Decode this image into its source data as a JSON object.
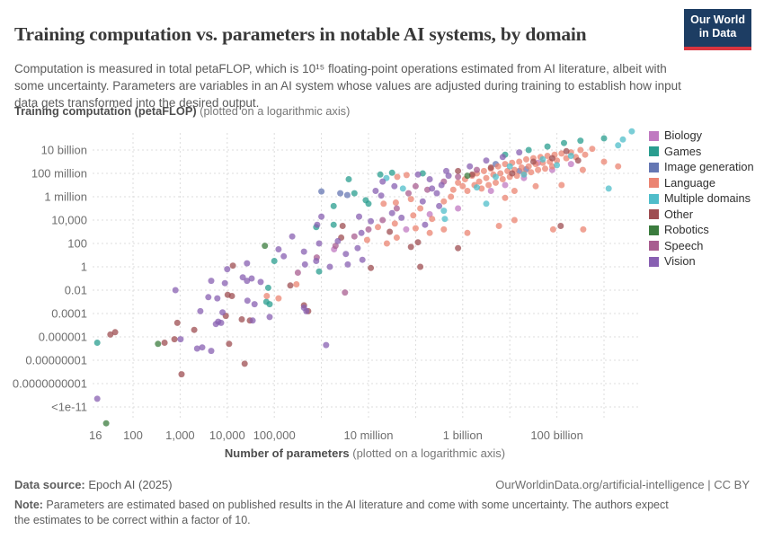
{
  "header": {
    "title": "Training computation vs. parameters in notable AI systems, by domain",
    "subtitle": "Computation is measured in total petaFLOP, which is 10¹⁵ floating-point operations estimated from AI literature, albeit with some uncertainty. Parameters are variables in an AI system whose values are adjusted during training to establish how input data gets transformed into the desired output.",
    "logo_line1": "Our World",
    "logo_line2": "in Data",
    "logo_bg": "#1d3d63",
    "logo_accent": "#d8353f"
  },
  "axis_header": {
    "bold": "Training computation (petaFLOP)",
    "normal": " (plotted on a logarithmic axis)"
  },
  "x_axis_title": {
    "bold": "Number of parameters",
    "normal": " (plotted on a logarithmic axis)"
  },
  "footer": {
    "source_label": "Data source:",
    "source_value": " Epoch AI (2025)",
    "attribution": "OurWorldinData.org/artificial-intelligence | CC BY",
    "note_label": "Note:",
    "note_value": " Parameters are estimated based on published results in the AI literature and come with some uncertainty. The authors expect the estimates to be correct within a factor of 10."
  },
  "chart_data": {
    "type": "scatter",
    "title": "Training computation vs. parameters in notable AI systems, by domain",
    "xlabel": "Number of parameters (logarithmic axis)",
    "ylabel": "Training computation, petaFLOP (logarithmic axis)",
    "grid": true,
    "legend_position": "right",
    "x_range_log10": [
      1.1,
      12.8
    ],
    "y_range_log10": [
      -13.5,
      12
    ],
    "x_gridlines_log10": [
      2,
      3,
      4,
      5,
      6,
      7,
      8,
      9,
      10,
      11,
      12
    ],
    "x_ticks": [
      {
        "label": "16",
        "log10": 1.204
      },
      {
        "label": "100",
        "log10": 2
      },
      {
        "label": "1,000",
        "log10": 3
      },
      {
        "label": "10,000",
        "log10": 4
      },
      {
        "label": "100,000",
        "log10": 5
      },
      {
        "label": "10 million",
        "log10": 7
      },
      {
        "label": "1 billion",
        "log10": 9
      },
      {
        "label": "100 billion",
        "log10": 11
      }
    ],
    "y_ticks": [
      {
        "label": "10 billion",
        "log10": 10
      },
      {
        "label": "100 million",
        "log10": 8
      },
      {
        "label": "1 million",
        "log10": 6
      },
      {
        "label": "10,000",
        "log10": 4
      },
      {
        "label": "100",
        "log10": 2
      },
      {
        "label": "1",
        "log10": 0
      },
      {
        "label": "0.01",
        "log10": -2
      },
      {
        "label": "0.0001",
        "log10": -4
      },
      {
        "label": "0.000001",
        "log10": -6
      },
      {
        "label": "0.00000001",
        "log10": -8
      },
      {
        "label": "0.0000000001",
        "log10": -10
      },
      {
        "label": "<1e-11",
        "log10": -12
      }
    ],
    "point_radius": 3.5,
    "point_opacity": 0.75,
    "series": [
      {
        "name": "Biology",
        "color": "#c07ac1",
        "points": [
          [
            6.27,
            1.5
          ],
          [
            7.8,
            3.2
          ],
          [
            8.3,
            4.5
          ],
          [
            8.9,
            5.0
          ],
          [
            9.6,
            6.5
          ],
          [
            9.9,
            7.0
          ],
          [
            10.3,
            7.6
          ],
          [
            10.6,
            8.9
          ],
          [
            10.9,
            8.3
          ],
          [
            11.3,
            8.8
          ]
        ]
      },
      {
        "name": "Games",
        "color": "#2a9d8f",
        "points": [
          [
            1.24,
            -6.5
          ],
          [
            4.83,
            -3.0
          ],
          [
            4.87,
            -1.8
          ],
          [
            4.9,
            -3.2
          ],
          [
            5.0,
            0.5
          ],
          [
            5.89,
            3.4
          ],
          [
            5.95,
            -0.4
          ],
          [
            6.26,
            3.6
          ],
          [
            6.26,
            5.2
          ],
          [
            6.58,
            7.5
          ],
          [
            6.7,
            6.3
          ],
          [
            6.94,
            5.7
          ],
          [
            7.0,
            5.4
          ],
          [
            7.25,
            7.9
          ],
          [
            7.5,
            8.05
          ],
          [
            8.15,
            8.0
          ],
          [
            9.9,
            9.6
          ],
          [
            10.4,
            10.0
          ],
          [
            10.8,
            10.3
          ],
          [
            11.15,
            10.6
          ],
          [
            11.5,
            10.8
          ],
          [
            12.0,
            11.0
          ]
        ]
      },
      {
        "name": "Image generation",
        "color": "#6577b3",
        "points": [
          [
            6.0,
            6.45
          ],
          [
            6.4,
            6.3
          ],
          [
            6.55,
            6.15
          ],
          [
            9.7,
            8.8
          ],
          [
            10.2,
            8.2
          ],
          [
            10.35,
            8.35
          ]
        ]
      },
      {
        "name": "Language",
        "color": "#eb8472",
        "points": [
          [
            4.84,
            -2.5
          ],
          [
            5.09,
            -2.7
          ],
          [
            5.47,
            -1.5
          ],
          [
            6.97,
            2.3
          ],
          [
            7.39,
            2.0
          ],
          [
            7.56,
            3.7
          ],
          [
            7.61,
            7.7
          ],
          [
            7.81,
            7.85
          ],
          [
            7.32,
            5.4
          ],
          [
            7.58,
            5.5
          ],
          [
            7.9,
            5.8
          ],
          [
            7.95,
            4.4
          ],
          [
            8.1,
            5.0
          ],
          [
            7.2,
            3.4
          ],
          [
            7.6,
            2.5
          ],
          [
            8.0,
            3.3
          ],
          [
            8.35,
            4.1
          ],
          [
            8.3,
            2.9
          ],
          [
            8.6,
            5.6
          ],
          [
            8.75,
            6.0
          ],
          [
            8.6,
            3.2
          ],
          [
            9.1,
            2.9
          ],
          [
            9.77,
            3.5
          ],
          [
            10.92,
            3.2
          ],
          [
            8.8,
            6.6
          ],
          [
            8.9,
            7.2
          ],
          [
            9.0,
            6.9
          ],
          [
            9.05,
            7.5
          ],
          [
            9.1,
            6.5
          ],
          [
            9.2,
            7.8
          ],
          [
            9.25,
            7.0
          ],
          [
            9.3,
            8.0
          ],
          [
            9.35,
            7.3
          ],
          [
            9.4,
            6.7
          ],
          [
            9.45,
            8.2
          ],
          [
            9.5,
            7.6
          ],
          [
            9.55,
            7.0
          ],
          [
            9.6,
            8.4
          ],
          [
            9.65,
            7.9
          ],
          [
            9.7,
            7.2
          ],
          [
            9.75,
            8.6
          ],
          [
            9.8,
            8.0
          ],
          [
            9.85,
            7.5
          ],
          [
            9.9,
            8.8
          ],
          [
            9.95,
            8.2
          ],
          [
            10.0,
            7.7
          ],
          [
            10.05,
            8.9
          ],
          [
            10.1,
            8.3
          ],
          [
            10.15,
            7.8
          ],
          [
            10.2,
            9.0
          ],
          [
            10.25,
            8.5
          ],
          [
            10.3,
            8.0
          ],
          [
            10.35,
            9.2
          ],
          [
            10.4,
            8.6
          ],
          [
            10.45,
            8.1
          ],
          [
            10.5,
            9.3
          ],
          [
            10.55,
            8.8
          ],
          [
            10.6,
            8.3
          ],
          [
            10.65,
            9.4
          ],
          [
            10.7,
            8.9
          ],
          [
            10.75,
            8.4
          ],
          [
            10.8,
            9.5
          ],
          [
            10.85,
            9.0
          ],
          [
            10.9,
            8.6
          ],
          [
            10.95,
            9.6
          ],
          [
            11.0,
            9.1
          ],
          [
            11.1,
            9.7
          ],
          [
            11.2,
            9.3
          ],
          [
            11.3,
            9.8
          ],
          [
            11.4,
            9.4
          ],
          [
            11.5,
            10.0
          ],
          [
            11.6,
            9.6
          ],
          [
            11.75,
            10.1
          ],
          [
            12.3,
            8.6
          ],
          [
            10.1,
            6.5
          ],
          [
            10.55,
            6.9
          ],
          [
            11.1,
            7.0
          ],
          [
            9.9,
            5.9
          ],
          [
            11.55,
            8.3
          ],
          [
            12.0,
            9.0
          ],
          [
            11.56,
            3.2
          ],
          [
            10.1,
            4.0
          ]
        ]
      },
      {
        "name": "Multiple domains",
        "color": "#4fbdca",
        "points": [
          [
            7.73,
            6.7
          ],
          [
            7.38,
            7.6
          ],
          [
            8.62,
            4.1
          ],
          [
            9.3,
            6.8
          ],
          [
            9.5,
            5.4
          ],
          [
            9.7,
            7.7
          ],
          [
            10.0,
            8.6
          ],
          [
            10.3,
            7.9
          ],
          [
            10.7,
            9.2
          ],
          [
            11.0,
            8.7
          ],
          [
            11.3,
            9.5
          ],
          [
            12.1,
            6.7
          ],
          [
            12.3,
            10.4
          ],
          [
            12.4,
            10.9
          ],
          [
            12.59,
            11.6
          ],
          [
            8.6,
            4.8
          ]
        ]
      },
      {
        "name": "Other",
        "color": "#9e4e52",
        "points": [
          [
            1.52,
            -5.8
          ],
          [
            1.62,
            -5.6
          ],
          [
            2.67,
            -6.5
          ],
          [
            2.88,
            -6.2
          ],
          [
            2.94,
            -4.8
          ],
          [
            3.3,
            -5.4
          ],
          [
            3.03,
            -9.2
          ],
          [
            3.97,
            -4.2
          ],
          [
            4.31,
            -4.5
          ],
          [
            4.48,
            -4.6
          ],
          [
            4.04,
            -6.6
          ],
          [
            4.37,
            -8.3
          ],
          [
            4.1,
            -2.5
          ],
          [
            4.12,
            0.1
          ],
          [
            4.01,
            -2.4
          ],
          [
            6.45,
            3.5
          ],
          [
            6.42,
            2.5
          ],
          [
            5.34,
            -1.6
          ],
          [
            5.63,
            -3.3
          ],
          [
            5.72,
            -3.8
          ],
          [
            7.9,
            1.7
          ],
          [
            8.1,
            0.0
          ],
          [
            8.9,
            1.6
          ],
          [
            7.05,
            -0.1
          ],
          [
            7.45,
            3.0
          ],
          [
            9.2,
            7.9
          ],
          [
            9.6,
            8.5
          ],
          [
            10.05,
            8.0
          ],
          [
            10.5,
            9.0
          ],
          [
            10.9,
            9.3
          ],
          [
            11.2,
            9.9
          ],
          [
            8.9,
            8.2
          ],
          [
            11.45,
            9.1
          ],
          [
            8.05,
            2.1
          ],
          [
            11.08,
            3.5
          ]
        ]
      },
      {
        "name": "Robotics",
        "color": "#3b7c3e",
        "points": [
          [
            1.43,
            -13.4
          ],
          [
            2.53,
            -6.6
          ],
          [
            4.8,
            1.8
          ],
          [
            9.1,
            7.8
          ]
        ]
      },
      {
        "name": "Speech",
        "color": "#a85d90",
        "points": [
          [
            5.5,
            -0.5
          ],
          [
            5.9,
            0.8
          ],
          [
            6.3,
            1.8
          ],
          [
            6.7,
            2.6
          ],
          [
            7.0,
            3.2
          ],
          [
            7.3,
            4.0
          ],
          [
            7.85,
            6.3
          ],
          [
            8.0,
            6.9
          ],
          [
            8.25,
            6.6
          ],
          [
            8.6,
            7.3
          ],
          [
            8.9,
            7.7
          ],
          [
            9.3,
            8.3
          ],
          [
            7.6,
            5.0
          ],
          [
            6.5,
            -2.2
          ]
        ]
      },
      {
        "name": "Vision",
        "color": "#8860b2",
        "points": [
          [
            1.24,
            -11.3
          ],
          [
            2.9,
            -2.0
          ],
          [
            3.01,
            -6.2
          ],
          [
            3.36,
            -7.0
          ],
          [
            3.43,
            -3.8
          ],
          [
            3.47,
            -6.9
          ],
          [
            3.6,
            -2.6
          ],
          [
            3.66,
            -1.2
          ],
          [
            3.66,
            -7.2
          ],
          [
            3.76,
            -4.9
          ],
          [
            3.79,
            -2.7
          ],
          [
            3.81,
            -4.7
          ],
          [
            3.87,
            -4.8
          ],
          [
            3.9,
            -3.9
          ],
          [
            3.95,
            -1.4
          ],
          [
            4.0,
            -0.2
          ],
          [
            4.33,
            -0.9
          ],
          [
            4.42,
            0.3
          ],
          [
            4.42,
            -1.2
          ],
          [
            4.43,
            -2.9
          ],
          [
            4.52,
            -1.0
          ],
          [
            4.54,
            -4.6
          ],
          [
            4.58,
            -3.2
          ],
          [
            4.71,
            -1.3
          ],
          [
            4.9,
            -4.3
          ],
          [
            5.09,
            1.5
          ],
          [
            5.2,
            0.9
          ],
          [
            5.38,
            2.6
          ],
          [
            5.63,
            -3.5
          ],
          [
            5.63,
            1.3
          ],
          [
            5.65,
            0.2
          ],
          [
            5.68,
            -3.8
          ],
          [
            5.89,
            0.5
          ],
          [
            5.91,
            3.6
          ],
          [
            5.95,
            2.0
          ],
          [
            6.0,
            4.3
          ],
          [
            6.1,
            -6.7
          ],
          [
            6.18,
            0.0
          ],
          [
            6.35,
            2.2
          ],
          [
            6.52,
            1.1
          ],
          [
            6.56,
            0.2
          ],
          [
            6.77,
            1.6
          ],
          [
            6.8,
            4.3
          ],
          [
            6.85,
            2.9
          ],
          [
            6.87,
            0.6
          ],
          [
            7.05,
            3.9
          ],
          [
            7.15,
            6.5
          ],
          [
            7.27,
            6.1
          ],
          [
            7.3,
            7.3
          ],
          [
            7.5,
            4.6
          ],
          [
            7.55,
            6.9
          ],
          [
            7.7,
            4.2
          ],
          [
            8.05,
            7.9
          ],
          [
            8.15,
            5.6
          ],
          [
            8.2,
            3.6
          ],
          [
            8.3,
            7.5
          ],
          [
            8.35,
            6.7
          ],
          [
            8.45,
            6.3
          ],
          [
            8.5,
            5.2
          ],
          [
            8.55,
            7.0
          ],
          [
            8.65,
            8.2
          ],
          [
            8.7,
            7.8
          ],
          [
            9.15,
            8.6
          ],
          [
            9.5,
            9.1
          ],
          [
            9.85,
            9.4
          ],
          [
            10.2,
            9.8
          ]
        ]
      }
    ]
  }
}
